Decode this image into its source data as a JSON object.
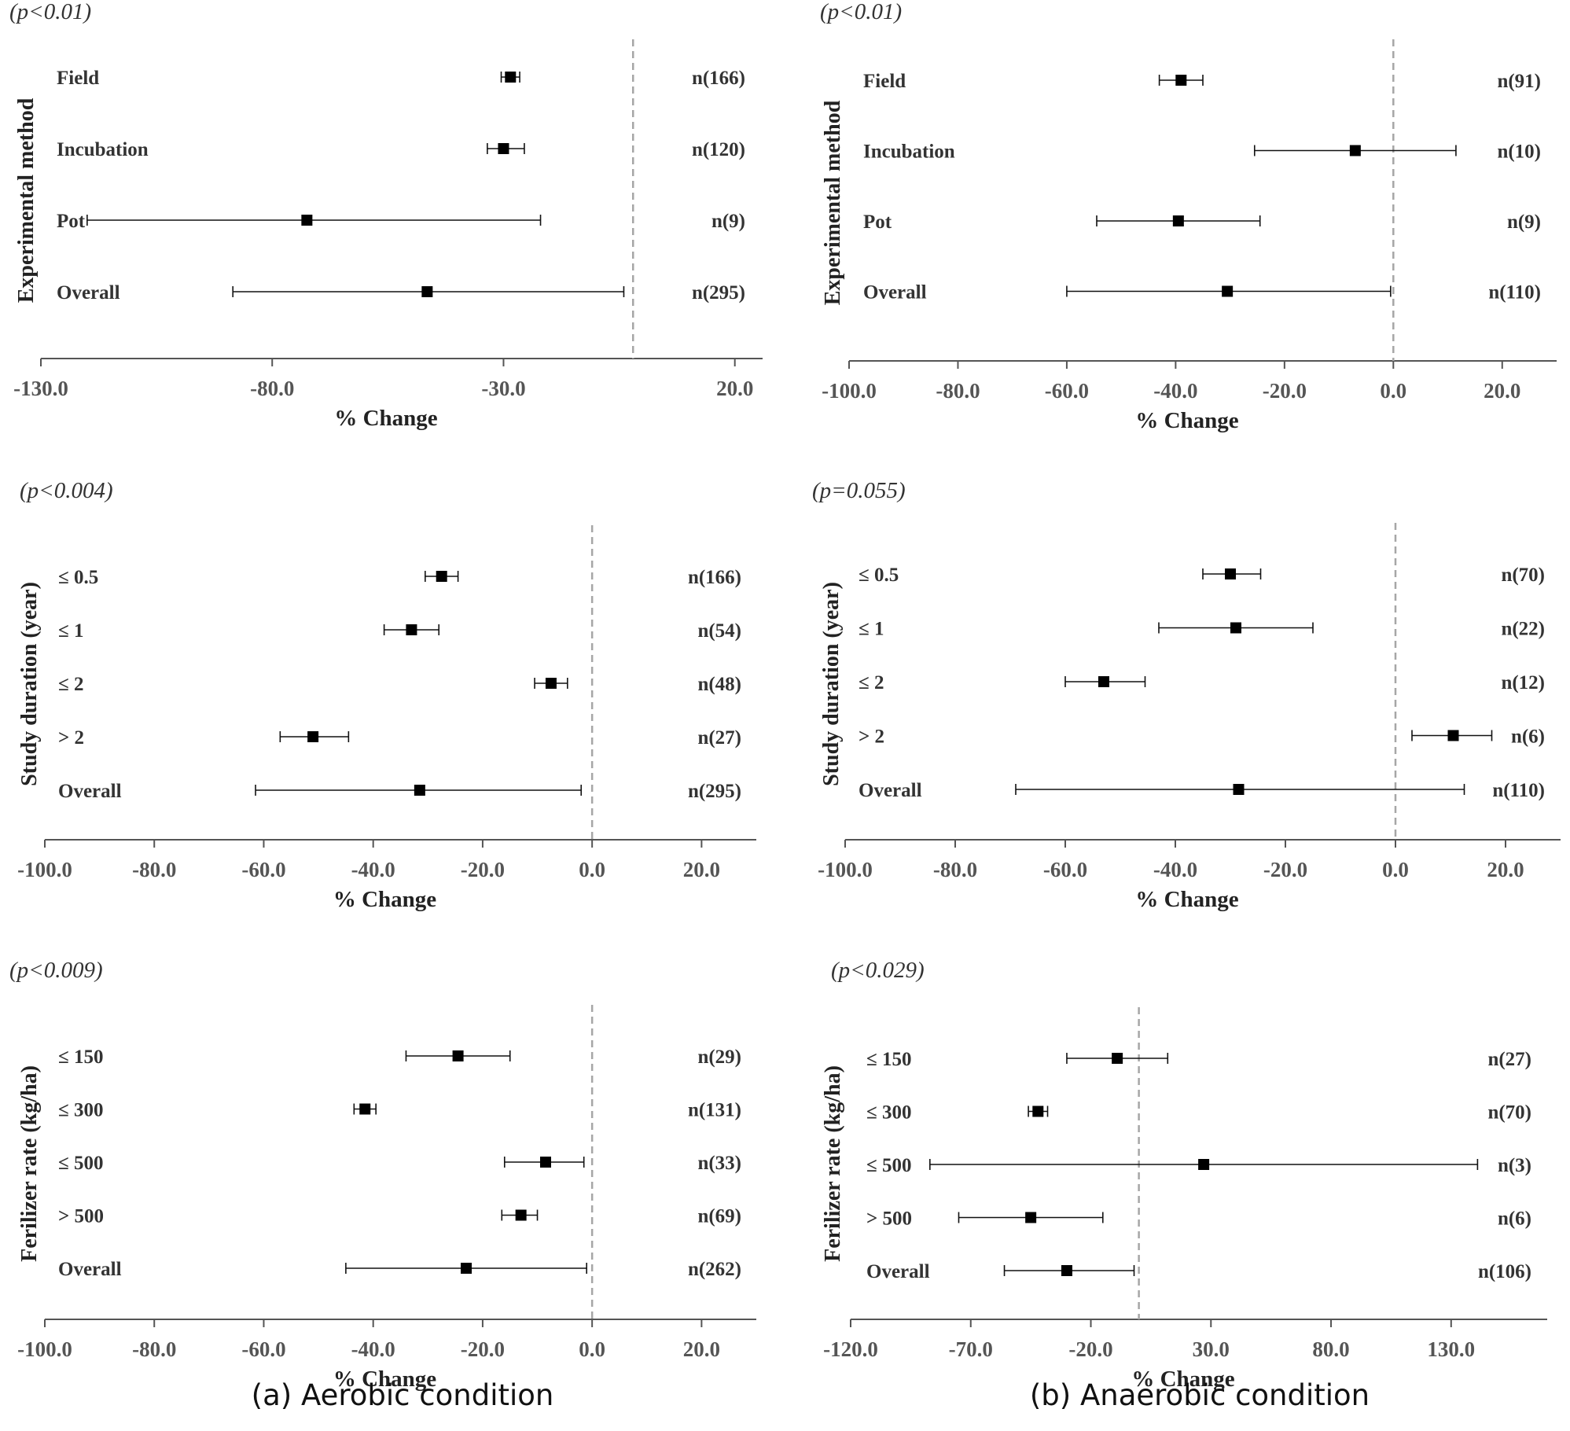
{
  "figure_captions": {
    "left": "(a) Aerobic condition",
    "right": "(b) Anaerobic condition"
  },
  "chart_data": [
    {
      "type": "forest",
      "panel": "aerobic-experimental-method",
      "title": "(p<0.01)",
      "xlabel": "%  Change",
      "ylabel": "Experimental method",
      "xlim": [
        -130,
        26
      ],
      "ticks": [
        -130,
        -80,
        -30,
        20
      ],
      "tick_labels": [
        "-130.0",
        "-80.0",
        "-30.0",
        "20.0"
      ],
      "reference_line": -2,
      "rows": [
        {
          "label": "Field",
          "mean": -28.5,
          "lower": -30.5,
          "upper": -26.5,
          "n": "n(166)"
        },
        {
          "label": "Incubation",
          "mean": -30,
          "lower": -33.5,
          "upper": -25.5,
          "n": "n(120)"
        },
        {
          "label": "Pot",
          "mean": -72.5,
          "lower": -120,
          "upper": -22,
          "n": "n(9)"
        },
        {
          "label": "Overall",
          "mean": -46.5,
          "lower": -88.5,
          "upper": -4,
          "n": "n(295)"
        }
      ]
    },
    {
      "type": "forest",
      "panel": "anaerobic-experimental-method",
      "title": "(p<0.01)",
      "xlabel": "%  Change",
      "ylabel": "Experimental method",
      "xlim": [
        -100,
        30
      ],
      "ticks": [
        -100,
        -80,
        -60,
        -40,
        -20,
        0,
        20
      ],
      "tick_labels": [
        "-100.0",
        "-80.0",
        "-60.0",
        "-40.0",
        "-20.0",
        "0.0",
        "20.0"
      ],
      "reference_line": 0,
      "rows": [
        {
          "label": "Field",
          "mean": -39,
          "lower": -43,
          "upper": -35,
          "n": "n(91)"
        },
        {
          "label": "Incubation",
          "mean": -7,
          "lower": -25.5,
          "upper": 11.5,
          "n": "n(10)"
        },
        {
          "label": "Pot",
          "mean": -39.5,
          "lower": -54.5,
          "upper": -24.5,
          "n": "n(9)"
        },
        {
          "label": "Overall",
          "mean": -30.5,
          "lower": -60,
          "upper": -0.5,
          "n": "n(110)"
        }
      ]
    },
    {
      "type": "forest",
      "panel": "aerobic-study-duration",
      "title": "(p<0.004)",
      "xlabel": "%  Change",
      "ylabel": "Study duration (year)",
      "xlim": [
        -100,
        30
      ],
      "ticks": [
        -100,
        -80,
        -60,
        -40,
        -20,
        0,
        20
      ],
      "tick_labels": [
        "-100.0",
        "-80.0",
        "-60.0",
        "-40.0",
        "-20.0",
        "0.0",
        "20.0"
      ],
      "reference_line": 0,
      "rows": [
        {
          "label": "≤ 0.5",
          "mean": -27.5,
          "lower": -30.5,
          "upper": -24.5,
          "n": "n(166)"
        },
        {
          "label": "≤ 1",
          "mean": -33,
          "lower": -38,
          "upper": -28,
          "n": "n(54)"
        },
        {
          "label": "≤ 2",
          "mean": -7.5,
          "lower": -10.5,
          "upper": -4.5,
          "n": "n(48)"
        },
        {
          "label": "> 2",
          "mean": -51,
          "lower": -57,
          "upper": -44.5,
          "n": "n(27)"
        },
        {
          "label": "Overall",
          "mean": -31.5,
          "lower": -61.5,
          "upper": -2,
          "n": "n(295)"
        }
      ]
    },
    {
      "type": "forest",
      "panel": "anaerobic-study-duration",
      "title": "(p=0.055)",
      "xlabel": "%  Change",
      "ylabel": "Study duration (year)",
      "xlim": [
        -100,
        30
      ],
      "ticks": [
        -100,
        -80,
        -60,
        -40,
        -20,
        0,
        20
      ],
      "tick_labels": [
        "-100.0",
        "-80.0",
        "-60.0",
        "-40.0",
        "-20.0",
        "0.0",
        "20.0"
      ],
      "reference_line": 0,
      "rows": [
        {
          "label": "≤ 0.5",
          "mean": -30,
          "lower": -35,
          "upper": -24.5,
          "n": "n(70)"
        },
        {
          "label": "≤ 1",
          "mean": -29,
          "lower": -43,
          "upper": -15,
          "n": "n(22)"
        },
        {
          "label": "≤ 2",
          "mean": -53,
          "lower": -60,
          "upper": -45.5,
          "n": "n(12)"
        },
        {
          "label": "> 2",
          "mean": 10.5,
          "lower": 3,
          "upper": 17.5,
          "n": "n(6)"
        },
        {
          "label": "Overall",
          "mean": -28.5,
          "lower": -69,
          "upper": 12.5,
          "n": "n(110)"
        }
      ]
    },
    {
      "type": "forest",
      "panel": "aerobic-fertilizer-rate",
      "title": "(p<0.009)",
      "xlabel": "%  Change",
      "ylabel": "Ferilizer rate (kg/ha)",
      "xlim": [
        -100,
        30
      ],
      "ticks": [
        -100,
        -80,
        -60,
        -40,
        -20,
        0,
        20
      ],
      "tick_labels": [
        "-100.0",
        "-80.0",
        "-60.0",
        "-40.0",
        "-20.0",
        "0.0",
        "20.0"
      ],
      "reference_line": 0,
      "rows": [
        {
          "label": "≤ 150",
          "mean": -24.5,
          "lower": -34,
          "upper": -15,
          "n": "n(29)"
        },
        {
          "label": "≤ 300",
          "mean": -41.5,
          "lower": -43.5,
          "upper": -39.5,
          "n": "n(131)"
        },
        {
          "label": "≤ 500",
          "mean": -8.5,
          "lower": -16,
          "upper": -1.5,
          "n": "n(33)"
        },
        {
          "label": "> 500",
          "mean": -13,
          "lower": -16.5,
          "upper": -10,
          "n": "n(69)"
        },
        {
          "label": "Overall",
          "mean": -23,
          "lower": -45,
          "upper": -1,
          "n": "n(262)"
        }
      ]
    },
    {
      "type": "forest",
      "panel": "anaerobic-fertilizer-rate",
      "title": "(p<0.029)",
      "xlabel": "%  Change",
      "ylabel": "Ferilizer rate (kg/ha)",
      "xlim": [
        -120,
        170
      ],
      "ticks": [
        -120,
        -70,
        -20,
        30,
        80,
        130
      ],
      "tick_labels": [
        "-120.0",
        "-70.0",
        "-20.0",
        "30.0",
        "80.0",
        "130.0"
      ],
      "reference_line": 0,
      "rows": [
        {
          "label": "≤ 150",
          "mean": -9,
          "lower": -30,
          "upper": 12,
          "n": "n(27)"
        },
        {
          "label": "≤ 300",
          "mean": -42,
          "lower": -46,
          "upper": -38,
          "n": "n(70)"
        },
        {
          "label": "≤ 500",
          "mean": 27,
          "lower": -87,
          "upper": 141,
          "n": "n(3)"
        },
        {
          "label": "> 500",
          "mean": -45,
          "lower": -75,
          "upper": -15,
          "n": "n(6)"
        },
        {
          "label": "Overall",
          "mean": -30,
          "lower": -56,
          "upper": -2,
          "n": "n(106)"
        }
      ]
    }
  ]
}
